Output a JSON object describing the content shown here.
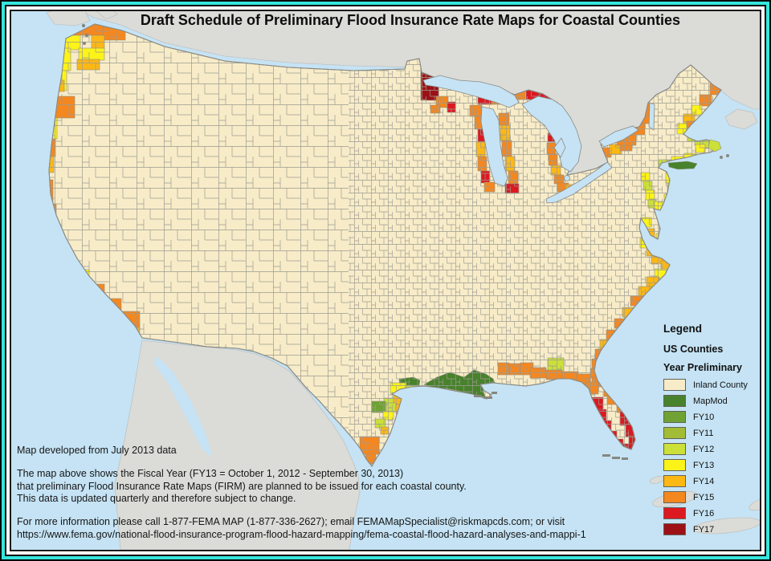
{
  "frame": {
    "border_color": "#35e6dc"
  },
  "title": "Draft Schedule of Preliminary Flood Insurance Rate Maps for Coastal Counties",
  "legend": {
    "heading": "Legend",
    "subheading": "US Counties",
    "group_label": "Year Preliminary",
    "items": [
      {
        "label": "Inland County",
        "color": "#f8ecc8"
      },
      {
        "label": "MapMod",
        "color": "#48822c"
      },
      {
        "label": "FY10",
        "color": "#6fa233"
      },
      {
        "label": "FY11",
        "color": "#a2bc35"
      },
      {
        "label": "FY12",
        "color": "#cbe038"
      },
      {
        "label": "FY13",
        "color": "#fcf319"
      },
      {
        "label": "FY14",
        "color": "#fdb813"
      },
      {
        "label": "FY15",
        "color": "#f5871f"
      },
      {
        "label": "FY16",
        "color": "#dc1821"
      },
      {
        "label": "FY17",
        "color": "#9d1116"
      }
    ]
  },
  "notes": {
    "developed": "Map developed from July 2013 data",
    "para_line1": "The map above shows the Fiscal Year (FY13 = October 1, 2012 - September 30, 2013)",
    "para_line2": "that preliminary Flood Insurance Rate Maps (FIRM) are planned to be issued for each coastal county.",
    "para_line3": "This data is updated quarterly and therefore subject to change.",
    "contact": "For more information please call 1-877-FEMA MAP (1-877-336-2627); email FEMAMapSpecialist@riskmapcds.com; or visit",
    "url": "https://www.fema.gov/national-flood-insurance-program-flood-hazard-mapping/fema-coastal-flood-hazard-analyses-and-mappi-1"
  },
  "map_colors": {
    "water": "#c5e3f4",
    "neighbor_land": "#dbdbd8",
    "inland": "#f8ecc8",
    "county_line": "#9b9b92",
    "outline": "#8a8a84",
    "mapmod": "#48822c",
    "fy10": "#6fa233",
    "fy11": "#a2bc35",
    "fy12": "#cbe038",
    "fy13": "#fcf319",
    "fy14": "#fdb813",
    "fy15": "#f5871f",
    "fy16": "#dc1821",
    "fy17": "#9d1116"
  }
}
